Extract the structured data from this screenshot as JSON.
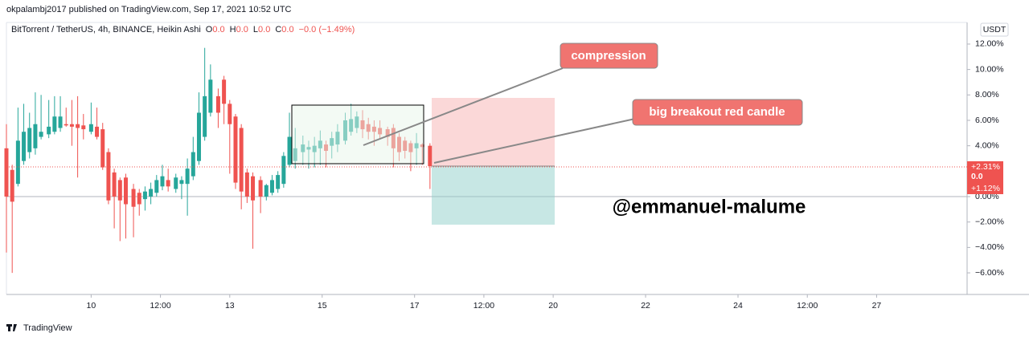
{
  "chart_data": {
    "type": "candlestick",
    "header": "okpalambj2017 published on TradingView.com, Sep 17, 2021 10:52 UTC",
    "symbol": "BitTorrent / TetherUS, 4h, BINANCE, Heikin Ashi",
    "ohlc_legend": [
      {
        "key": "O",
        "text": "0.0"
      },
      {
        "key": "H",
        "text": "0.0"
      },
      {
        "key": "L",
        "text": "0.0"
      },
      {
        "key": "C",
        "text": "0.0"
      }
    ],
    "change": "−0.0 (−1.49%)",
    "currency": "USDT",
    "price_labels": [
      "+2.31%",
      "0.0",
      "+1.12%"
    ],
    "annotations": [
      "compression",
      "big breakout red candle"
    ],
    "watermark": "@emmanuel-malume",
    "footer": "TradingView",
    "up_color": "#26a69a",
    "down_color": "#ef5350",
    "xlim": [
      -44,
      455
    ],
    "xticks": [
      {
        "value": 0,
        "label": "10"
      },
      {
        "value": 36,
        "label": "12:00"
      },
      {
        "value": 72,
        "label": "13"
      },
      {
        "value": 120,
        "label": "15"
      },
      {
        "value": 168,
        "label": "17"
      },
      {
        "value": 204,
        "label": "12:00"
      },
      {
        "value": 240,
        "label": "20"
      },
      {
        "value": 288,
        "label": "22"
      },
      {
        "value": 336,
        "label": "24"
      },
      {
        "value": 372,
        "label": "12:00"
      },
      {
        "value": 408,
        "label": "27"
      }
    ],
    "ylim": [
      -7.7,
      13.7
    ],
    "yticks": [
      {
        "value": 12,
        "label": "12.00%"
      },
      {
        "value": 10,
        "label": "10.00%"
      },
      {
        "value": 8,
        "label": "8.00%"
      },
      {
        "value": 6,
        "label": "6.00%"
      },
      {
        "value": 4,
        "label": "4.00%"
      },
      {
        "value": 0,
        "label": "0.00%"
      },
      {
        "value": -2,
        "label": "−2.00%"
      },
      {
        "value": -4,
        "label": "−4.00%"
      },
      {
        "value": -6,
        "label": "−6.00%"
      }
    ],
    "x": [
      -44,
      -41,
      -38,
      -35,
      -32,
      -29,
      -26,
      -22,
      -19,
      -16,
      -13,
      -10,
      -7,
      -4,
      0,
      3,
      6,
      9,
      12,
      15,
      18,
      22,
      25,
      28,
      31,
      34,
      37,
      40,
      44,
      47,
      50,
      53,
      56,
      59,
      62,
      66,
      69,
      72,
      75,
      78,
      81,
      84,
      88,
      91,
      94,
      97,
      100,
      103,
      106,
      110,
      113,
      116,
      119,
      122,
      125,
      128,
      132,
      135,
      138,
      141,
      144,
      147,
      150,
      154,
      157,
      160,
      163,
      166,
      169,
      172,
      176
    ],
    "open": [
      3.8,
      2.1,
      1,
      2.8,
      3.5,
      3.8,
      4.7,
      4.9,
      5.1,
      5.4,
      5.7,
      5.7,
      5.7,
      5.6,
      5.1,
      5.5,
      5.3,
      3.5,
      1.9,
      1.3,
      1.5,
      0.6,
      0.3,
      -0.2,
      0,
      0.3,
      0.8,
      1.3,
      0.6,
      1.0,
      1.0,
      1.6,
      2.8,
      4.7,
      6.6,
      7.9,
      9.2,
      7.3,
      6.3,
      5.4,
      1.9,
      1.6,
      1.3,
      0,
      0.3,
      0.6,
      1.0,
      2.5,
      2.8,
      3.5,
      3.7,
      3.5,
      3.8,
      4.1,
      4.0,
      4.1,
      4.4,
      5.1,
      5.4,
      6.0,
      5.7,
      5.5,
      5.4,
      5.3,
      5.4,
      4.7,
      4.4,
      4.2,
      3.8,
      4.1,
      4.0
    ],
    "high": [
      5.7,
      2.5,
      7,
      7.3,
      6.6,
      8.2,
      8,
      7.6,
      7.9,
      7.9,
      7.0,
      7.6,
      7.9,
      6.5,
      7.4,
      7,
      5.8,
      3.8,
      2.2,
      1.5,
      1.8,
      1.0,
      0.6,
      0.8,
      1.1,
      1.7,
      2.5,
      2.2,
      1.8,
      1.6,
      3.0,
      4.7,
      8.2,
      11.7,
      10.4,
      8.5,
      9.5,
      7.6,
      6.5,
      5.7,
      2.2,
      1.9,
      1.6,
      1.0,
      1.7,
      2.0,
      3.5,
      6.6,
      5.4,
      4.8,
      4.4,
      4.7,
      5.2,
      4.4,
      5.1,
      5.7,
      6.6,
      7.3,
      6.7,
      6.8,
      6.2,
      6.0,
      6.0,
      5.5,
      5.7,
      5.0,
      4.7,
      4.4,
      5.0,
      4.2,
      4.2
    ],
    "low": [
      -4.4,
      -6.0,
      0.8,
      2.5,
      3,
      3.3,
      4.5,
      4.6,
      4.9,
      5.1,
      5.5,
      4.0,
      1.5,
      4.5,
      4.9,
      4.5,
      2.1,
      -0.6,
      -2.5,
      -3.5,
      -3.3,
      -3.2,
      -1.5,
      -1.1,
      -0.6,
      0,
      0.5,
      0.4,
      0.3,
      -0.2,
      -1.5,
      1.3,
      2.5,
      4.4,
      6.3,
      5.4,
      5.7,
      1.8,
      0.6,
      -1.0,
      -0.5,
      -4.1,
      -1.3,
      -0.3,
      0.1,
      0.3,
      0.7,
      2.3,
      2.2,
      2.5,
      2.2,
      2.3,
      2.5,
      2.3,
      3.0,
      3.5,
      4.1,
      4.8,
      5.0,
      4.6,
      4.5,
      4.0,
      4.5,
      4.0,
      2.3,
      2.8,
      3.0,
      2.0,
      2.5,
      2.5,
      0.6
    ],
    "close": [
      0,
      -0.4,
      4.4,
      5.1,
      5.4,
      5.7,
      5.1,
      5.5,
      6.3,
      6.3,
      5.6,
      5.5,
      5.4,
      5.3,
      5.7,
      4.7,
      2.3,
      -0.3,
      0,
      -0.3,
      -0.6,
      -0.8,
      -0.6,
      0.4,
      0.6,
      1.3,
      1.6,
      0.8,
      1.5,
      1.3,
      2.2,
      3.5,
      6.6,
      7.9,
      9.2,
      6.6,
      7.3,
      5.7,
      1.1,
      0.4,
      0,
      -0.3,
      0,
      0.9,
      1.3,
      1.7,
      3.2,
      4.7,
      3.8,
      4.1,
      3.9,
      4.0,
      4.4,
      3.6,
      4.6,
      5.1,
      6.0,
      6.1,
      6.3,
      5.3,
      5.1,
      5.1,
      4.9,
      4.7,
      3.8,
      3.5,
      3.6,
      3.5,
      4.2,
      3.9,
      2.4
    ]
  }
}
